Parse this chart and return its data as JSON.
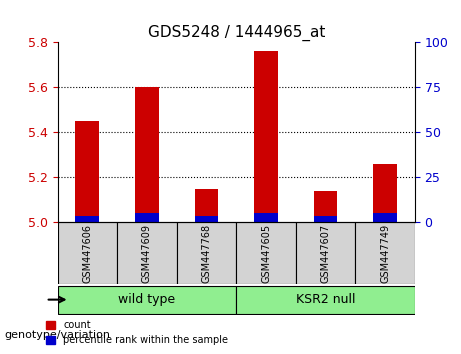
{
  "title": "GDS5248 / 1444965_at",
  "samples": [
    "GSM447606",
    "GSM447609",
    "GSM447768",
    "GSM447605",
    "GSM447607",
    "GSM447749"
  ],
  "red_values": [
    5.45,
    5.6,
    5.15,
    5.76,
    5.14,
    5.26
  ],
  "blue_values": [
    5.03,
    5.04,
    5.03,
    5.04,
    5.03,
    5.04
  ],
  "ymin": 5.0,
  "ymax": 5.8,
  "yticks_left": [
    5.0,
    5.2,
    5.4,
    5.6,
    5.8
  ],
  "yticks_right": [
    0,
    25,
    50,
    75,
    100
  ],
  "groups": [
    {
      "label": "wild type",
      "indices": [
        0,
        1,
        2
      ],
      "color": "#90EE90"
    },
    {
      "label": "KSR2 null",
      "indices": [
        3,
        4,
        5
      ],
      "color": "#90EE90"
    }
  ],
  "group_label_prefix": "genotype/variation",
  "legend_red": "count",
  "legend_blue": "percentile rank within the sample",
  "bar_width": 0.4,
  "red_color": "#CC0000",
  "blue_color": "#0000CC",
  "grid_color": "#000000",
  "left_axis_color": "#CC0000",
  "right_axis_color": "#0000CC",
  "sample_box_color": "#D3D3D3",
  "bar_base": 5.0
}
